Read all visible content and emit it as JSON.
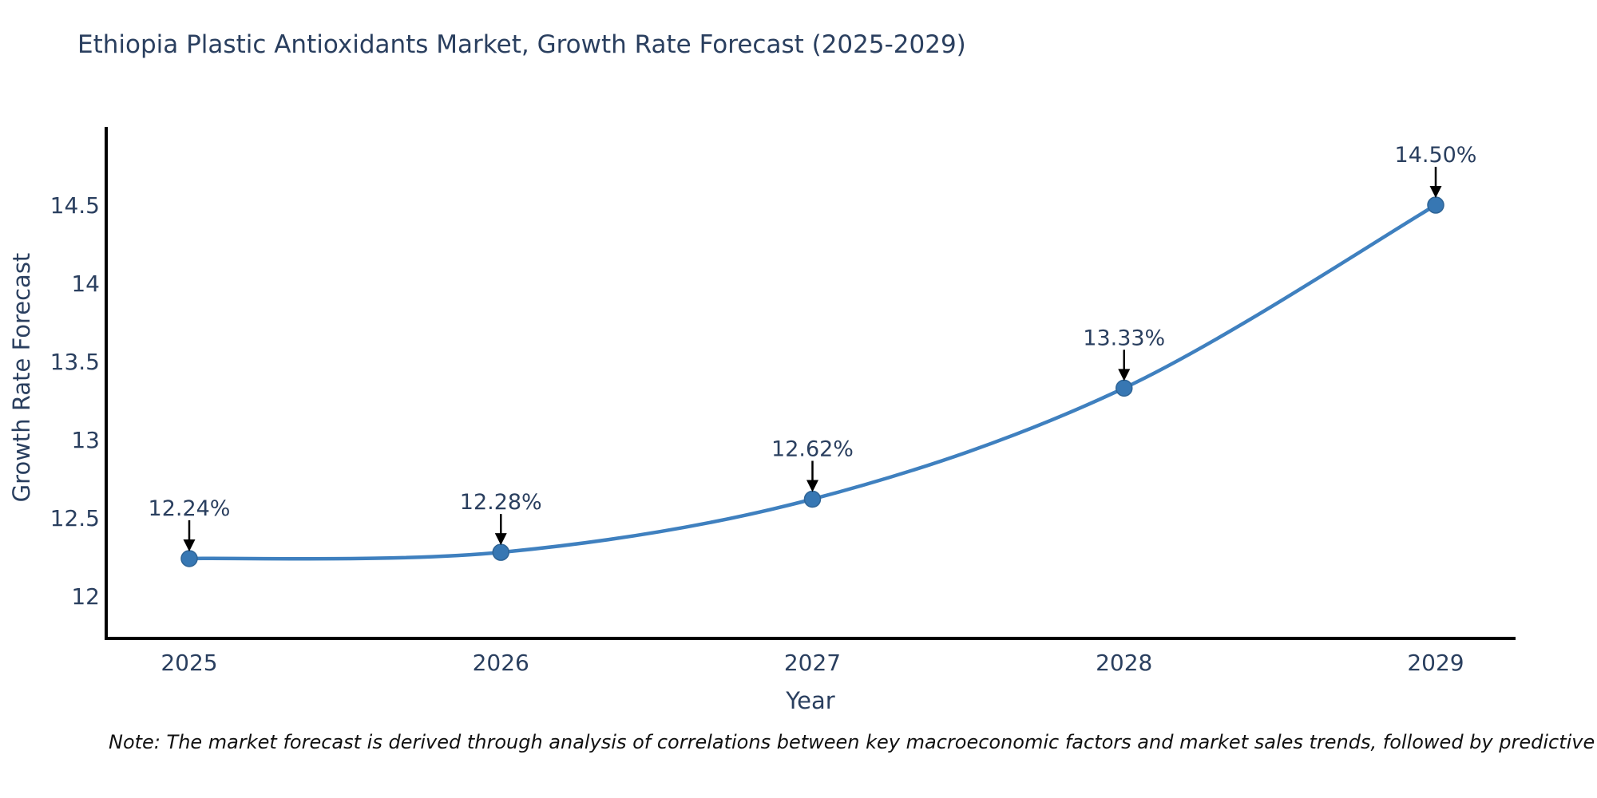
{
  "title": "Ethiopia Plastic Antioxidants Market, Growth Rate Forecast (2025-2029)",
  "note": "Note: The market forecast is derived through analysis of correlations between key macroeconomic factors and market sales trends, followed by predictive modeling to project future sal",
  "colors": {
    "line": "#3f80bf",
    "marker": "#3777b3",
    "marker_edge": "#2e6496",
    "axis": "#000000",
    "arrow": "#000000",
    "label_text": "#2a3f5f",
    "note_text": "#111111",
    "background": "#ffffff"
  },
  "chart_data": {
    "type": "line",
    "title": "Ethiopia Plastic Antioxidants Market, Growth Rate Forecast (2025-2029)",
    "xlabel": "Year",
    "ylabel": "Growth Rate Forecast",
    "x": [
      2025,
      2026,
      2027,
      2028,
      2029
    ],
    "xtick_labels": [
      "2025",
      "2026",
      "2027",
      "2028",
      "2029"
    ],
    "series": [
      {
        "name": "Growth Rate Forecast",
        "values": [
          12.24,
          12.28,
          12.62,
          13.33,
          14.5
        ]
      }
    ],
    "point_labels": [
      "12.24%",
      "12.28%",
      "12.62%",
      "13.33%",
      "14.50%"
    ],
    "yticks": [
      12,
      12.5,
      13,
      13.5,
      14,
      14.5
    ],
    "ytick_labels": [
      "12",
      "12.5",
      "13",
      "13.5",
      "14",
      "14.5"
    ],
    "ylim": [
      11.75,
      14.95
    ],
    "grid": false,
    "legend": false,
    "annotation_style": "down-arrow"
  }
}
